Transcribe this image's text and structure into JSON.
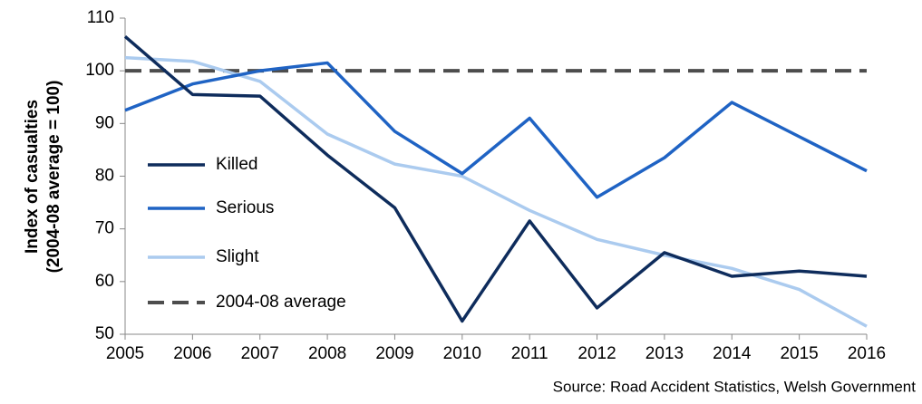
{
  "chart_data": {
    "type": "line",
    "ylabel": [
      "Index of casualties",
      "(2004-08  average = 100)"
    ],
    "source": "Source: Road Accident Statistics, Welsh Government",
    "categories": [
      "2005",
      "2006",
      "2007",
      "2008",
      "2009",
      "2010",
      "2011",
      "2012",
      "2013",
      "2014",
      "2015",
      "2016"
    ],
    "series": [
      {
        "name": "Killed",
        "color": "#0e2c5c",
        "values": [
          106.5,
          95.5,
          95.2,
          84,
          74,
          52.5,
          71.5,
          55,
          65.5,
          61,
          62,
          61
        ]
      },
      {
        "name": "Serious",
        "color": "#1f63c4",
        "values": [
          92.5,
          97.5,
          100,
          101.5,
          88.5,
          80.5,
          91,
          76,
          83.5,
          94,
          87.5,
          81
        ]
      },
      {
        "name": "Slight",
        "color": "#abcbef",
        "values": [
          102.5,
          101.8,
          98,
          88,
          82.3,
          80,
          73.5,
          68,
          65,
          62.5,
          58.5,
          51.5
        ]
      },
      {
        "name": "2004-08 average",
        "color": "#4d4d4d",
        "dashed": true,
        "values": [
          100,
          100,
          100,
          100,
          100,
          100,
          100,
          100,
          100,
          100,
          100,
          100
        ]
      }
    ],
    "ylim": [
      50,
      110
    ],
    "yticks": [
      50,
      60,
      70,
      80,
      90,
      100,
      110
    ],
    "grid": false
  }
}
